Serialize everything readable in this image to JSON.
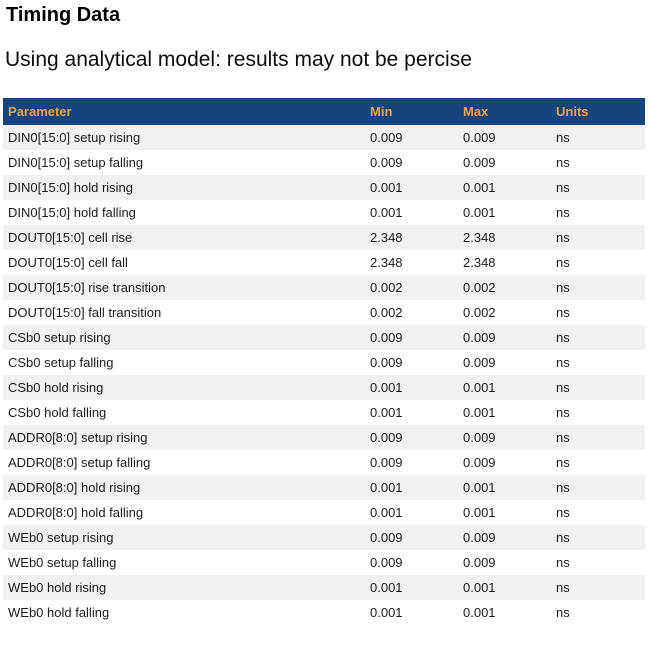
{
  "page": {
    "title": "Timing Data",
    "subtitle": "Using analytical model: results may not be percise"
  },
  "table": {
    "columns": [
      "Parameter",
      "Min",
      "Max",
      "Units"
    ],
    "rows": [
      {
        "parameter": "DIN0[15:0] setup rising",
        "min": "0.009",
        "max": "0.009",
        "units": "ns"
      },
      {
        "parameter": "DIN0[15:0] setup falling",
        "min": "0.009",
        "max": "0.009",
        "units": "ns"
      },
      {
        "parameter": "DIN0[15:0] hold rising",
        "min": "0.001",
        "max": "0.001",
        "units": "ns"
      },
      {
        "parameter": "DIN0[15:0] hold falling",
        "min": "0.001",
        "max": "0.001",
        "units": "ns"
      },
      {
        "parameter": "DOUT0[15:0] cell rise",
        "min": "2.348",
        "max": "2.348",
        "units": "ns"
      },
      {
        "parameter": "DOUT0[15:0] cell fall",
        "min": "2.348",
        "max": "2.348",
        "units": "ns"
      },
      {
        "parameter": "DOUT0[15:0] rise transition",
        "min": "0.002",
        "max": "0.002",
        "units": "ns"
      },
      {
        "parameter": "DOUT0[15:0] fall transition",
        "min": "0.002",
        "max": "0.002",
        "units": "ns"
      },
      {
        "parameter": "CSb0 setup rising",
        "min": "0.009",
        "max": "0.009",
        "units": "ns"
      },
      {
        "parameter": "CSb0 setup falling",
        "min": "0.009",
        "max": "0.009",
        "units": "ns"
      },
      {
        "parameter": "CSb0 hold rising",
        "min": "0.001",
        "max": "0.001",
        "units": "ns"
      },
      {
        "parameter": "CSb0 hold falling",
        "min": "0.001",
        "max": "0.001",
        "units": "ns"
      },
      {
        "parameter": "ADDR0[8:0] setup rising",
        "min": "0.009",
        "max": "0.009",
        "units": "ns"
      },
      {
        "parameter": "ADDR0[8:0] setup falling",
        "min": "0.009",
        "max": "0.009",
        "units": "ns"
      },
      {
        "parameter": "ADDR0[8:0] hold rising",
        "min": "0.001",
        "max": "0.001",
        "units": "ns"
      },
      {
        "parameter": "ADDR0[8:0] hold falling",
        "min": "0.001",
        "max": "0.001",
        "units": "ns"
      },
      {
        "parameter": "WEb0 setup rising",
        "min": "0.009",
        "max": "0.009",
        "units": "ns"
      },
      {
        "parameter": "WEb0 setup falling",
        "min": "0.009",
        "max": "0.009",
        "units": "ns"
      },
      {
        "parameter": "WEb0 hold rising",
        "min": "0.001",
        "max": "0.001",
        "units": "ns"
      },
      {
        "parameter": "WEb0 hold falling",
        "min": "0.001",
        "max": "0.001",
        "units": "ns"
      }
    ]
  },
  "colors": {
    "header_bg": "#15447E",
    "header_text": "#EDA43D",
    "row_alt_bg": "#F0F1F1",
    "row_text": "#1B1B1B",
    "page_bg": "#FFFFFF"
  }
}
